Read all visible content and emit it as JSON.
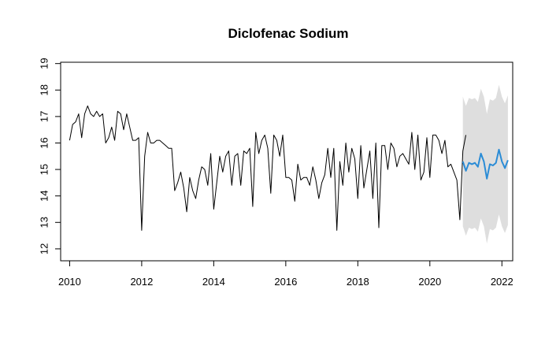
{
  "chart_data": {
    "type": "line",
    "title": "Diclofenac Sodium",
    "xlabel": "",
    "ylabel": "",
    "xlim": [
      2009.75,
      2022.3
    ],
    "ylim": [
      11.55,
      19.05
    ],
    "xticks": [
      2010,
      2012,
      2014,
      2016,
      2018,
      2020,
      2022
    ],
    "yticks": [
      12,
      13,
      14,
      15,
      16,
      17,
      18,
      19
    ],
    "grid": false,
    "legend": "none",
    "colors": {
      "history": "#000000",
      "forecast": "#2B8CD6",
      "band": "#DEDEDE"
    },
    "series": [
      {
        "role": "history",
        "start": 2010.0,
        "step": 0.0833333,
        "values": [
          16.1,
          16.7,
          16.8,
          17.1,
          16.2,
          17.1,
          17.4,
          17.1,
          17.0,
          17.2,
          17.0,
          17.1,
          16.0,
          16.2,
          16.6,
          16.1,
          17.2,
          17.1,
          16.5,
          17.1,
          16.6,
          16.1,
          16.1,
          16.2,
          12.7,
          15.5,
          16.4,
          16.0,
          16.0,
          16.1,
          16.1,
          16.0,
          15.9,
          15.8,
          15.8,
          14.2,
          14.5,
          14.9,
          14.3,
          13.4,
          14.7,
          14.2,
          13.9,
          14.6,
          15.1,
          15.0,
          14.4,
          15.6,
          13.5,
          14.5,
          15.5,
          14.9,
          15.5,
          15.7,
          14.4,
          15.5,
          15.6,
          14.4,
          15.7,
          15.6,
          15.8,
          13.6,
          16.4,
          15.6,
          16.1,
          16.3,
          15.8,
          14.1,
          16.3,
          16.1,
          15.5,
          16.3,
          14.7,
          14.7,
          14.6,
          13.8,
          15.2,
          14.6,
          14.7,
          14.7,
          14.4,
          15.1,
          14.6,
          13.9,
          14.5,
          14.8,
          15.8,
          14.7,
          15.8,
          12.7,
          15.3,
          14.4,
          16.0,
          14.9,
          15.8,
          15.4,
          13.9,
          15.9,
          14.3,
          15.0,
          15.7,
          13.9,
          16.0,
          12.8,
          15.9,
          15.9,
          15.0,
          16.0,
          15.8,
          15.1,
          15.5,
          15.6,
          15.4,
          15.2,
          16.4,
          15.0,
          16.3,
          14.6,
          14.9,
          16.2,
          14.7,
          16.3,
          16.3,
          16.1,
          15.6,
          16.1,
          15.1,
          15.2,
          14.9,
          14.6,
          13.1,
          15.7,
          16.3
        ]
      },
      {
        "role": "forecast",
        "start": 2020.917,
        "step": 0.0833333,
        "values": [
          15.3,
          14.95,
          15.25,
          15.2,
          15.25,
          15.1,
          15.6,
          15.3,
          14.65,
          15.2,
          15.15,
          15.25,
          15.75,
          15.3,
          15.05,
          15.35
        ],
        "upper": [
          17.75,
          17.4,
          17.7,
          17.65,
          17.7,
          17.55,
          18.05,
          17.75,
          17.1,
          17.65,
          17.6,
          17.7,
          18.2,
          17.75,
          17.5,
          17.8
        ],
        "lower": [
          12.85,
          12.5,
          12.8,
          12.75,
          12.8,
          12.65,
          13.15,
          12.85,
          12.2,
          12.75,
          12.7,
          12.8,
          13.3,
          12.85,
          12.6,
          12.9
        ]
      }
    ]
  }
}
